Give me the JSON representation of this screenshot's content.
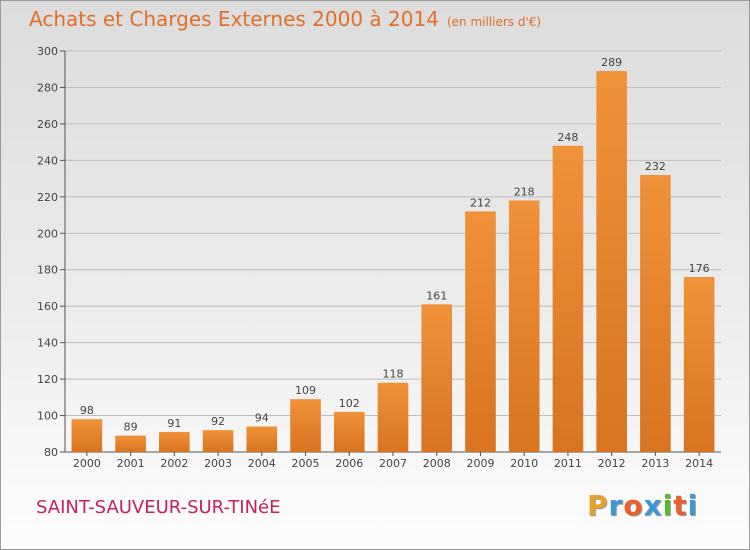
{
  "chart_data": {
    "type": "bar",
    "title": "Achats et Charges Externes 2000 à 2014",
    "subtitle": "(en milliers d'€)",
    "xlabel": "",
    "ylabel": "",
    "categories": [
      "2000",
      "2001",
      "2002",
      "2003",
      "2004",
      "2005",
      "2006",
      "2007",
      "2008",
      "2009",
      "2010",
      "2011",
      "2012",
      "2013",
      "2014"
    ],
    "values": [
      98,
      89,
      91,
      92,
      94,
      109,
      102,
      118,
      161,
      212,
      218,
      248,
      289,
      232,
      176
    ],
    "data_labels": [
      "98",
      "89",
      "91",
      "92",
      "94",
      "109",
      "102",
      "118",
      "161",
      "212",
      "218",
      "248",
      "289",
      "232",
      "176"
    ],
    "ylim": [
      80,
      300
    ],
    "yticks": [
      80,
      100,
      120,
      140,
      160,
      180,
      200,
      220,
      240,
      260,
      280,
      300
    ],
    "grid": true,
    "bar_color": "#f0923a",
    "bar_color_dark": "#d9731f"
  },
  "footer": {
    "commune": "SAINT-SAUVEUR-SUR-TINéE",
    "brand": "Proxiti",
    "brand_colors": [
      "#e8a12a",
      "#3a9ad9",
      "#e8602a",
      "#3a9ad9",
      "#5ab82e",
      "#e8602a",
      "#3a9ad9"
    ]
  }
}
